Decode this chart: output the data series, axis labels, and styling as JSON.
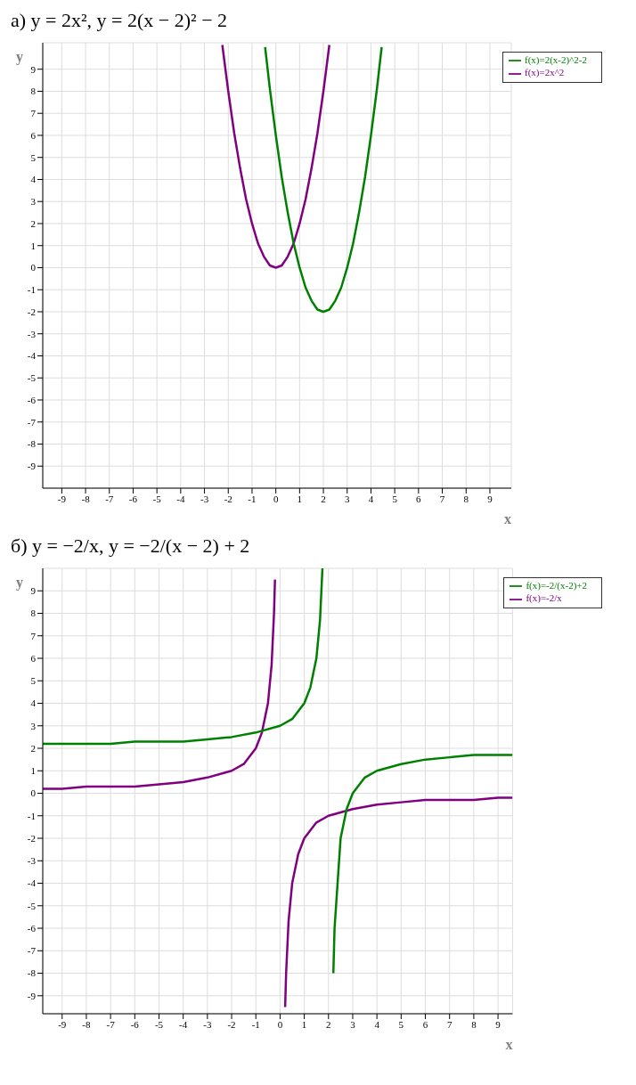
{
  "chart_data": [
    {
      "type": "line",
      "title": "а) y = 2x²,   y = 2(x − 2)² − 2",
      "xlabel": "x",
      "ylabel": "y",
      "xlim": [
        -9.8,
        9.9
      ],
      "ylim": [
        -10,
        10.2
      ],
      "xticks": [
        -9,
        -8,
        -7,
        -6,
        -5,
        -4,
        -3,
        -2,
        -1,
        0,
        1,
        2,
        3,
        4,
        5,
        6,
        7,
        8,
        9
      ],
      "yticks": [
        -9,
        -8,
        -7,
        -6,
        -5,
        -4,
        -3,
        -2,
        -1,
        0,
        1,
        2,
        3,
        4,
        5,
        6,
        7,
        8,
        9
      ],
      "grid": true,
      "legend": "top right",
      "series": [
        {
          "name": "f(x)=2x^2",
          "color": "#800080",
          "x": [
            -2.25,
            -2,
            -1.75,
            -1.5,
            -1.25,
            -1,
            -0.75,
            -0.5,
            -0.25,
            0,
            0.25,
            0.5,
            0.75,
            1,
            1.25,
            1.5,
            1.75,
            2,
            2.25
          ],
          "values": [
            10.1,
            8,
            6.1,
            4.5,
            3.1,
            2,
            1.1,
            0.5,
            0.1,
            0,
            0.1,
            0.5,
            1.1,
            2,
            3.1,
            4.5,
            6.1,
            8,
            10.1
          ]
        },
        {
          "name": "f(x)=2(x-2)^2-2",
          "color": "#008000",
          "x": [
            -0.45,
            -0.25,
            0,
            0.25,
            0.5,
            0.75,
            1,
            1.25,
            1.5,
            1.75,
            2,
            2.25,
            2.5,
            2.75,
            3,
            3.25,
            3.5,
            3.75,
            4,
            4.25,
            4.45
          ],
          "values": [
            10,
            8.1,
            6,
            4.1,
            2.5,
            1.1,
            0,
            -0.9,
            -1.5,
            -1.9,
            -2,
            -1.9,
            -1.5,
            -0.9,
            0,
            1.1,
            2.5,
            4.1,
            6,
            8.1,
            10
          ]
        }
      ]
    },
    {
      "type": "line",
      "title": "б) y = −2/x,   y = −2/(x − 2) + 2",
      "xlabel": "x",
      "ylabel": "y",
      "xlim": [
        -9.8,
        9.6
      ],
      "ylim": [
        -9.8,
        10
      ],
      "xticks": [
        -9,
        -8,
        -7,
        -6,
        -5,
        -4,
        -3,
        -2,
        -1,
        0,
        1,
        2,
        3,
        4,
        5,
        6,
        7,
        8,
        9
      ],
      "yticks": [
        -9,
        -8,
        -7,
        -6,
        -5,
        -4,
        -3,
        -2,
        -1,
        0,
        1,
        2,
        3,
        4,
        5,
        6,
        7,
        8,
        9
      ],
      "grid": true,
      "legend": "top right",
      "series": [
        {
          "name": "f(x)=-2/x",
          "color": "#800080",
          "x": [
            -9.8,
            -9,
            -8,
            -7,
            -6,
            -5,
            -4,
            -3,
            -2,
            -1.5,
            -1,
            -0.75,
            -0.5,
            -0.35,
            -0.25,
            -0.21,
            0,
            0.21,
            0.25,
            0.35,
            0.5,
            0.75,
            1,
            1.5,
            2,
            3,
            4,
            5,
            6,
            7,
            8,
            9,
            9.6
          ],
          "values": [
            0.2,
            0.2,
            0.3,
            0.3,
            0.3,
            0.4,
            0.5,
            0.7,
            1,
            1.3,
            2,
            2.7,
            4,
            5.7,
            8,
            9.5,
            null,
            -9.5,
            -8,
            -5.7,
            -4,
            -2.7,
            -2,
            -1.3,
            -1,
            -0.7,
            -0.5,
            -0.4,
            -0.3,
            -0.3,
            -0.3,
            -0.2,
            -0.2
          ]
        },
        {
          "name": "f(x)=-2/(x-2)+2",
          "color": "#008000",
          "x": [
            -9.8,
            -9,
            -8,
            -7,
            -6,
            -5,
            -4,
            -3,
            -2,
            -1,
            0,
            0.5,
            1,
            1.25,
            1.5,
            1.65,
            1.75,
            2,
            2.2,
            2.25,
            2.5,
            2.75,
            3,
            3.5,
            4,
            5,
            6,
            7,
            8,
            9,
            9.6
          ],
          "values": [
            2.2,
            2.2,
            2.2,
            2.2,
            2.3,
            2.3,
            2.3,
            2.4,
            2.5,
            2.7,
            3,
            3.3,
            4,
            4.7,
            6,
            7.7,
            10,
            null,
            -8,
            -6,
            -2,
            -0.7,
            0,
            0.7,
            1,
            1.3,
            1.5,
            1.6,
            1.7,
            1.7,
            1.7
          ]
        }
      ]
    }
  ]
}
